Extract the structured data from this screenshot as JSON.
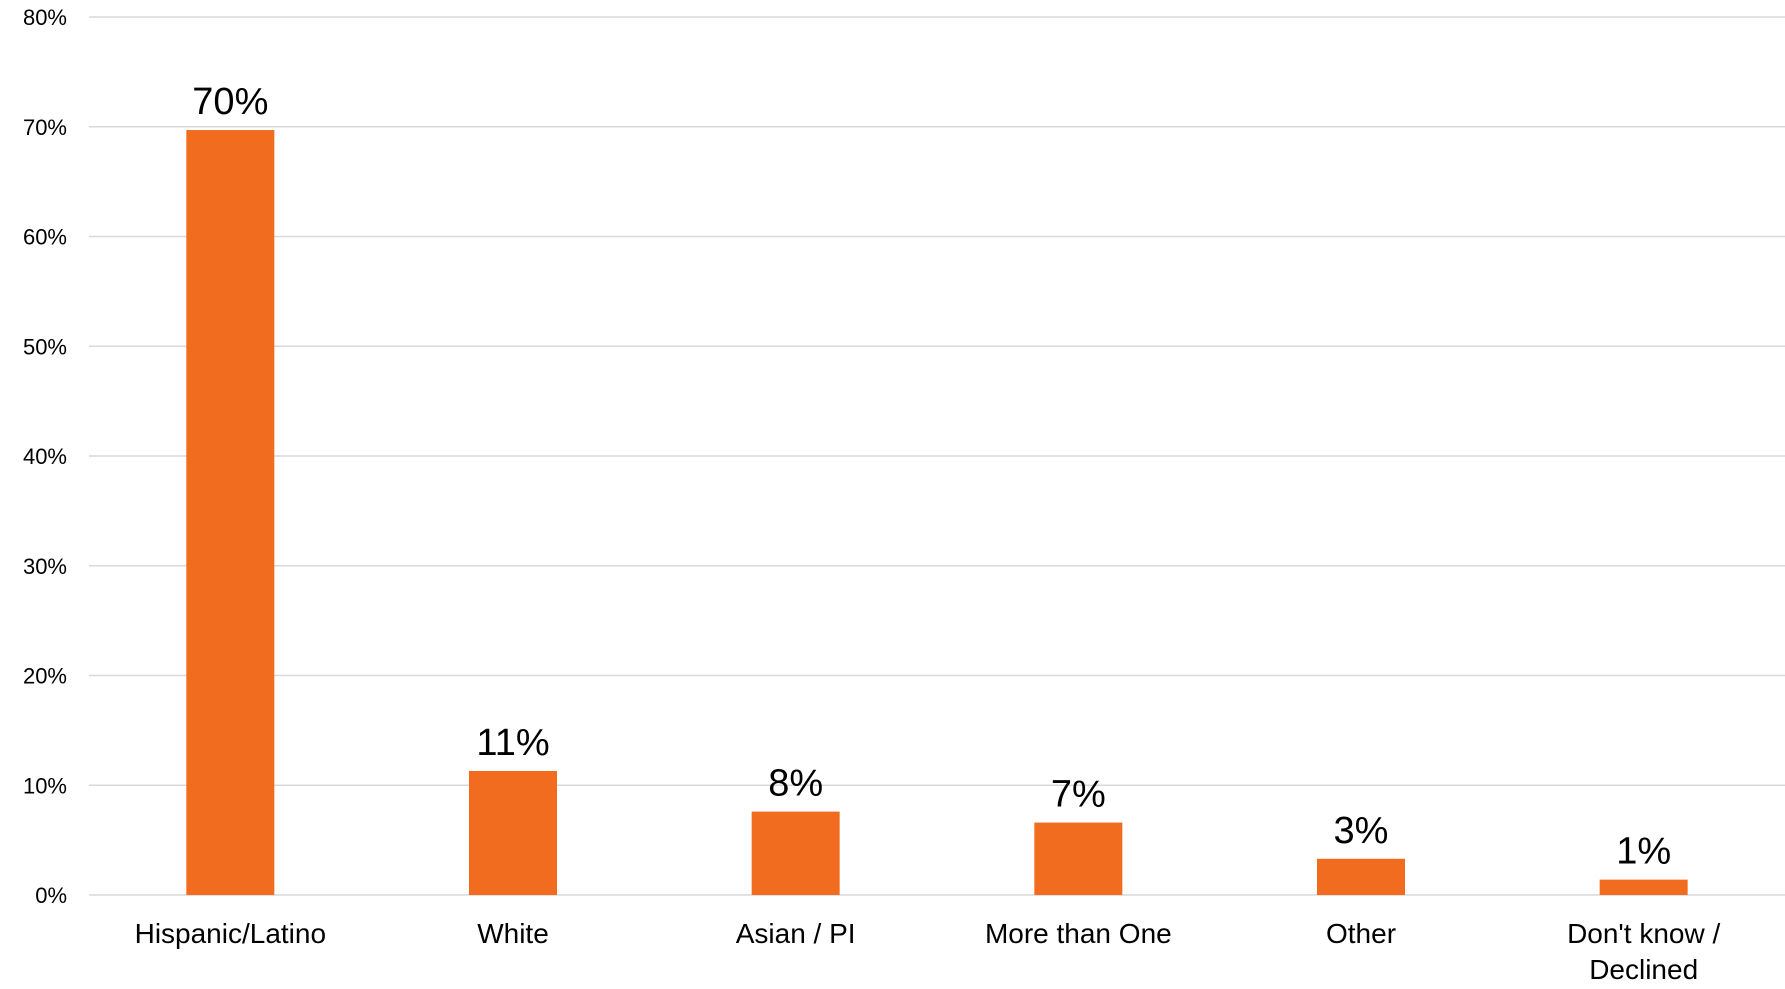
{
  "chart_data": {
    "type": "bar",
    "categories": [
      [
        "Hispanic/Latino"
      ],
      [
        "White"
      ],
      [
        "Asian / PI"
      ],
      [
        "More than One"
      ],
      [
        "Other"
      ],
      [
        "Don't know /",
        "Declined"
      ]
    ],
    "values": [
      69.7,
      11.3,
      7.6,
      6.6,
      3.3,
      1.4
    ],
    "data_labels": [
      "70%",
      "11%",
      "8%",
      "7%",
      "3%",
      "1%"
    ],
    "ylim": [
      0,
      80
    ],
    "y_ticks": [
      0,
      10,
      20,
      30,
      40,
      50,
      60,
      70,
      80
    ],
    "y_tick_labels": [
      "0%",
      "10%",
      "20%",
      "30%",
      "40%",
      "50%",
      "60%",
      "70%",
      "80%"
    ],
    "title": "",
    "xlabel": "",
    "ylabel": "",
    "grid": true,
    "legend": "none",
    "bar_color": "#F26C1F",
    "grid_color": "#D9D9D9",
    "text_color": "#000000"
  }
}
